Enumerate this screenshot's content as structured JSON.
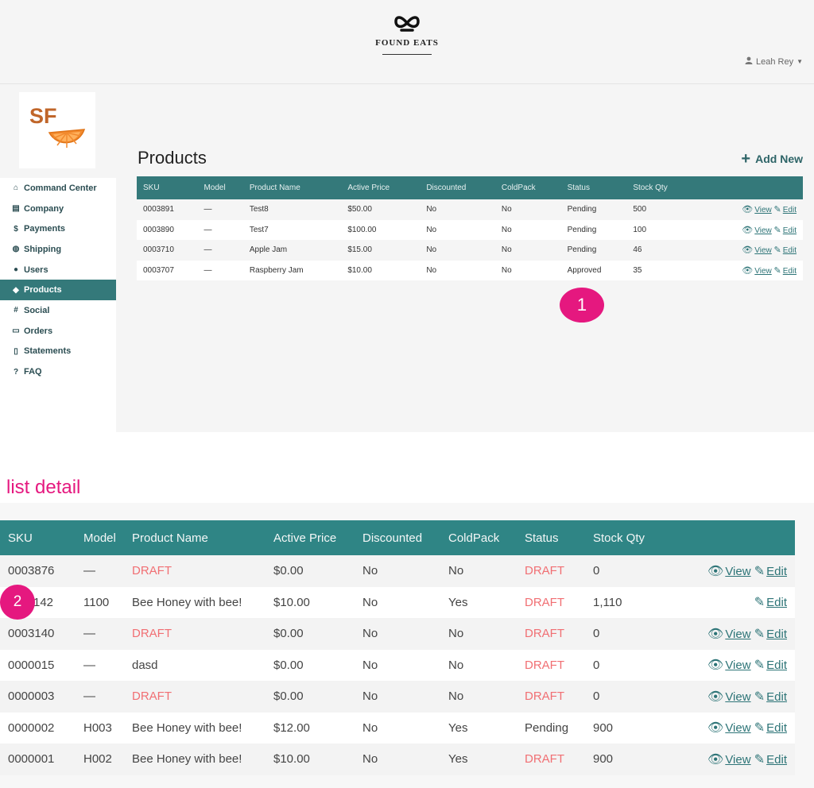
{
  "brand": {
    "name": "FOUND EATS"
  },
  "user": {
    "name": "Leah Rey"
  },
  "logo": {
    "text": "SF"
  },
  "sidebar": {
    "items": [
      {
        "label": "Command Center",
        "icon": "home-icon"
      },
      {
        "label": "Company",
        "icon": "storefront-icon"
      },
      {
        "label": "Payments",
        "icon": "dollar-icon"
      },
      {
        "label": "Shipping",
        "icon": "globe-icon"
      },
      {
        "label": "Users",
        "icon": "user-icon"
      },
      {
        "label": "Products",
        "icon": "cube-icon",
        "active": true
      },
      {
        "label": "Social",
        "icon": "hashtag-icon"
      },
      {
        "label": "Orders",
        "icon": "credit-card-icon"
      },
      {
        "label": "Statements",
        "icon": "document-icon"
      },
      {
        "label": "FAQ",
        "icon": "help-icon"
      }
    ]
  },
  "main": {
    "title": "Products",
    "add_new": "Add New",
    "columns": [
      "SKU",
      "Model",
      "Product Name",
      "Active Price",
      "Discounted",
      "ColdPack",
      "Status",
      "Stock Qty"
    ],
    "rows": [
      {
        "sku": "0003891",
        "model": "—",
        "name": "Test8",
        "price": "$50.00",
        "discounted": "No",
        "coldpack": "No",
        "status": "Pending",
        "stock": "500"
      },
      {
        "sku": "0003890",
        "model": "—",
        "name": "Test7",
        "price": "$100.00",
        "discounted": "No",
        "coldpack": "No",
        "status": "Pending",
        "stock": "100"
      },
      {
        "sku": "0003710",
        "model": "—",
        "name": "Apple Jam",
        "price": "$15.00",
        "discounted": "No",
        "coldpack": "No",
        "status": "Pending",
        "stock": "46"
      },
      {
        "sku": "0003707",
        "model": "—",
        "name": "Raspberry Jam",
        "price": "$10.00",
        "discounted": "No",
        "coldpack": "No",
        "status": "Approved",
        "stock": "35"
      }
    ],
    "view_label": "View",
    "edit_label": "Edit"
  },
  "annotations": {
    "badge1": "1",
    "badge2": "2",
    "detail_title": "list detail"
  },
  "detail": {
    "columns": [
      "SKU",
      "Model",
      "Product Name",
      "Active Price",
      "Discounted",
      "ColdPack",
      "Status",
      "Stock Qty"
    ],
    "rows": [
      {
        "sku": "0003876",
        "model": "—",
        "name": "DRAFT",
        "price": "$0.00",
        "discounted": "No",
        "coldpack": "No",
        "status": "DRAFT",
        "stock": "0",
        "has_view": true
      },
      {
        "sku": "142",
        "model": "1100",
        "name": "Bee Honey with bee!",
        "price": "$10.00",
        "discounted": "No",
        "coldpack": "Yes",
        "status": "DRAFT",
        "stock": "1,110",
        "has_view": false
      },
      {
        "sku": "0003140",
        "model": "—",
        "name": "DRAFT",
        "price": "$0.00",
        "discounted": "No",
        "coldpack": "No",
        "status": "DRAFT",
        "stock": "0",
        "has_view": true
      },
      {
        "sku": "0000015",
        "model": "—",
        "name": "dasd",
        "price": "$0.00",
        "discounted": "No",
        "coldpack": "No",
        "status": "DRAFT",
        "stock": "0",
        "has_view": true
      },
      {
        "sku": "0000003",
        "model": "—",
        "name": "DRAFT",
        "price": "$0.00",
        "discounted": "No",
        "coldpack": "No",
        "status": "DRAFT",
        "stock": "0",
        "has_view": true
      },
      {
        "sku": "0000002",
        "model": "H003",
        "name": "Bee Honey with bee!",
        "price": "$12.00",
        "discounted": "No",
        "coldpack": "Yes",
        "status": "Pending",
        "stock": "900",
        "has_view": true
      },
      {
        "sku": "0000001",
        "model": "H002",
        "name": "Bee Honey with bee!",
        "price": "$10.00",
        "discounted": "No",
        "coldpack": "Yes",
        "status": "DRAFT",
        "stock": "900",
        "has_view": true
      }
    ],
    "view_label": "View",
    "edit_label": "Edit"
  },
  "colors": {
    "accent": "#34797a",
    "draft": "#f16f73",
    "annotation": "#e5187f"
  }
}
